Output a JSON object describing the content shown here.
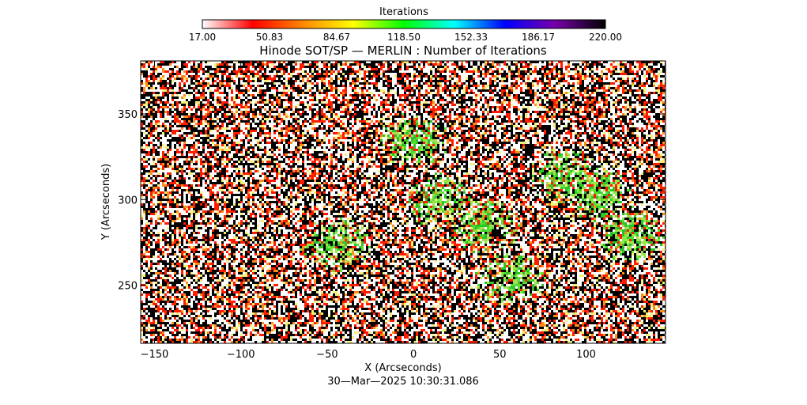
{
  "chart_data": {
    "type": "heatmap",
    "title": "Hinode SOT/SP — MERLIN : Number of Iterations",
    "xlabel": "X (Arcseconds)",
    "ylabel": "Y (Arcseconds)",
    "timestamp": "30—Mar—2025 10:30:31.086",
    "xlim": [
      -158,
      146
    ],
    "ylim": [
      216,
      381
    ],
    "x_ticks": [
      -150,
      -100,
      -50,
      0,
      50,
      100
    ],
    "x_tick_labels": [
      "−150",
      "−100",
      "−50",
      "0",
      "50",
      "100"
    ],
    "y_ticks": [
      250,
      300,
      350
    ],
    "y_tick_labels": [
      "250",
      "300",
      "350"
    ],
    "colorbar": {
      "label": "Iterations",
      "min": 17.0,
      "max": 220.0,
      "tick_values": [
        17.0,
        50.83,
        84.67,
        118.5,
        152.33,
        186.17,
        220.0
      ],
      "tick_labels": [
        "17.00",
        "50.83",
        "84.67",
        "118.50",
        "152.33",
        "186.17",
        "220.00"
      ],
      "colors": [
        "#ffffff",
        "#ff0000",
        "#ff8800",
        "#ffff00",
        "#00ff00",
        "#00ffff",
        "#0000ff",
        "#7700aa",
        "#000000"
      ]
    },
    "green_regions": [
      {
        "x": 0,
        "y": 335,
        "value": 100
      },
      {
        "x": 15,
        "y": 300,
        "value": 105
      },
      {
        "x": 40,
        "y": 285,
        "value": 95
      },
      {
        "x": 85,
        "y": 315,
        "value": 110
      },
      {
        "x": 105,
        "y": 305,
        "value": 115
      },
      {
        "x": -45,
        "y": 275,
        "value": 95
      },
      {
        "x": 55,
        "y": 255,
        "value": 95
      },
      {
        "x": 125,
        "y": 280,
        "value": 90
      }
    ],
    "dark_regions": [
      {
        "x": 48,
        "y": 281,
        "value": 220
      },
      {
        "x": 66,
        "y": 330,
        "value": 220
      },
      {
        "x": 135,
        "y": 315,
        "value": 220
      }
    ],
    "background_mix": {
      "white": 0.34,
      "black": 0.36,
      "red": 0.18,
      "orange": 0.06,
      "yellow": 0.06
    }
  }
}
